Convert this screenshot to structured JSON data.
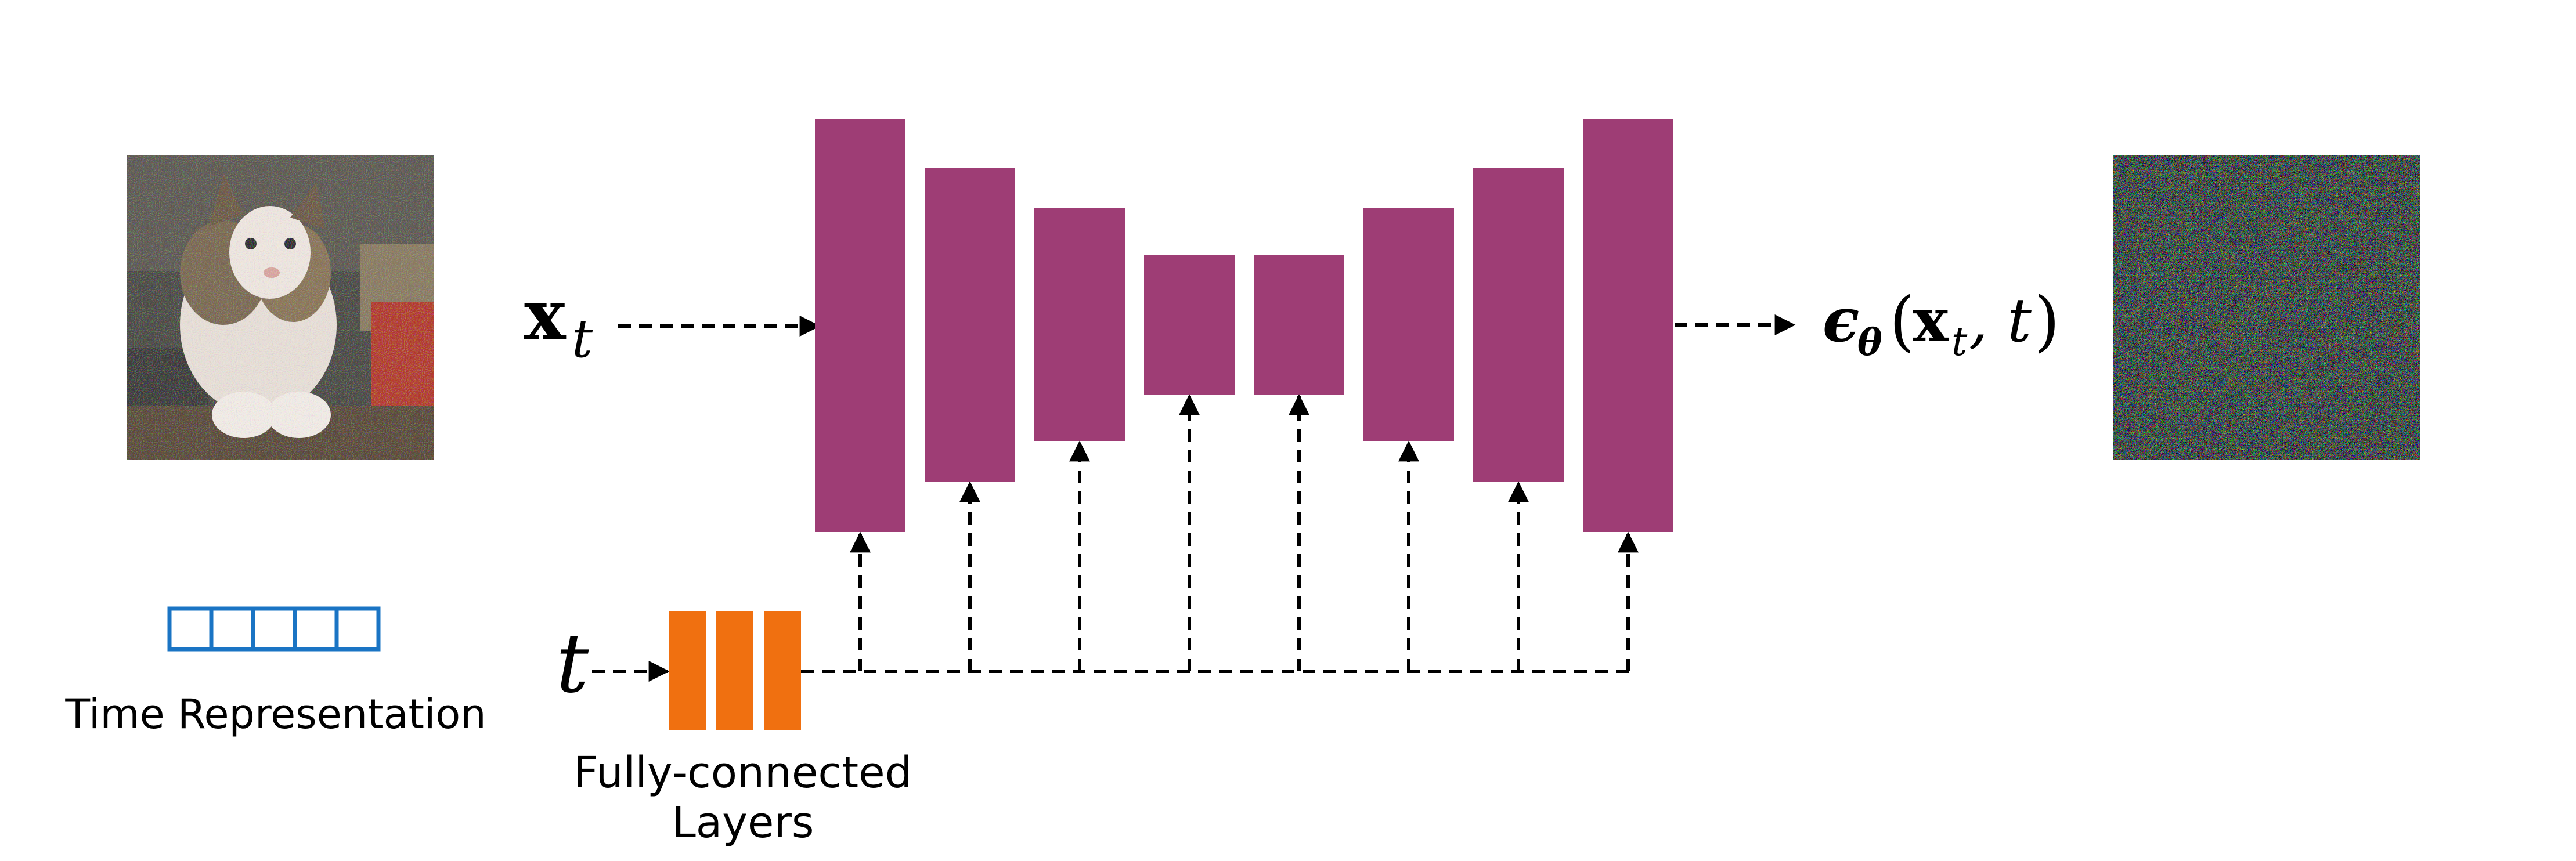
{
  "input": {
    "image_name": "noisy-cat-image",
    "symbol_x": "x",
    "symbol_x_sub": "t"
  },
  "time_embedding": {
    "symbol_t": "t",
    "representation_label": "Time Representation",
    "fc_label_line1": "Fully-connected",
    "fc_label_line2": "Layers",
    "fc_layer_count": 3
  },
  "output": {
    "epsilon": "ϵ",
    "theta": "θ",
    "paren_open": "(",
    "x": "x",
    "x_sub": "t",
    "comma_t": ", t",
    "paren_close": ")",
    "image_name": "predicted-noise-image"
  },
  "unet": {
    "block_count": 8
  },
  "colors": {
    "unet_block": "#9e3d75",
    "fc_layer": "#f07010",
    "time_vector_border": "#1a74c4",
    "arrow": "#000000"
  }
}
